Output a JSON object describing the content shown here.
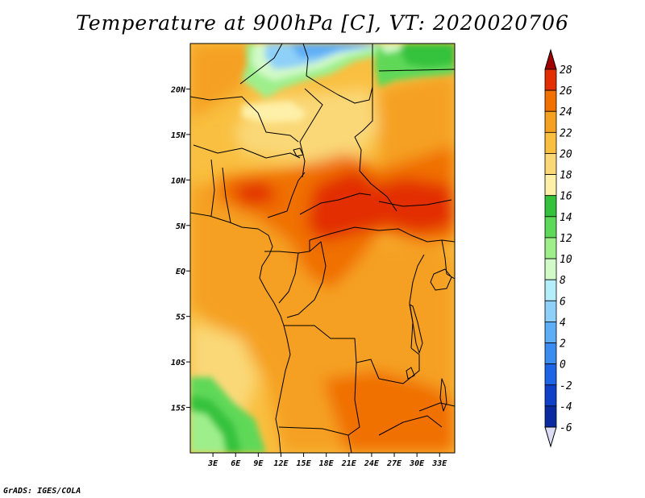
{
  "title": "Temperature at 900hPa [C], VT: 2020020706",
  "credit": "GrADS: IGES/COLA",
  "map": {
    "lon_range": [
      0,
      35
    ],
    "lat_range": [
      -20,
      25
    ],
    "lat_ticks": [
      {
        "value": 20,
        "label": "20N"
      },
      {
        "value": 15,
        "label": "15N"
      },
      {
        "value": 10,
        "label": "10N"
      },
      {
        "value": 5,
        "label": "5N"
      },
      {
        "value": 0,
        "label": "EQ"
      },
      {
        "value": -5,
        "label": "5S"
      },
      {
        "value": -10,
        "label": "10S"
      },
      {
        "value": -15,
        "label": "15S"
      }
    ],
    "lon_ticks": [
      {
        "value": 3,
        "label": "3E"
      },
      {
        "value": 6,
        "label": "6E"
      },
      {
        "value": 9,
        "label": "9E"
      },
      {
        "value": 12,
        "label": "12E"
      },
      {
        "value": 15,
        "label": "15E"
      },
      {
        "value": 18,
        "label": "18E"
      },
      {
        "value": 21,
        "label": "21E"
      },
      {
        "value": 24,
        "label": "24E"
      },
      {
        "value": 27,
        "label": "27E"
      },
      {
        "value": 30,
        "label": "30E"
      },
      {
        "value": 33,
        "label": "33E"
      }
    ]
  },
  "colorbar": {
    "levels": [
      {
        "label": "28",
        "color": "#a00000"
      },
      {
        "label": "26",
        "color": "#e22e00"
      },
      {
        "label": "24",
        "color": "#f07000"
      },
      {
        "label": "22",
        "color": "#f5a020"
      },
      {
        "label": "20",
        "color": "#f9bf40"
      },
      {
        "label": "18",
        "color": "#fad878"
      },
      {
        "label": "16",
        "color": "#fef0a8"
      },
      {
        "label": "14",
        "color": "#34c23c"
      },
      {
        "label": "12",
        "color": "#5ed858"
      },
      {
        "label": "10",
        "color": "#9eef8c"
      },
      {
        "label": "8",
        "color": "#d2f9c8"
      },
      {
        "label": "6",
        "color": "#b4eefa"
      },
      {
        "label": "4",
        "color": "#8ed0f8"
      },
      {
        "label": "2",
        "color": "#5eaef5"
      },
      {
        "label": "0",
        "color": "#3a8cf0"
      },
      {
        "label": "-2",
        "color": "#1e64e6"
      },
      {
        "label": "-4",
        "color": "#1040c8"
      },
      {
        "label": "-6",
        "color": "#0c2aa0"
      }
    ],
    "below_color": "#0a0f73",
    "above_color": "#dcdcf5"
  }
}
